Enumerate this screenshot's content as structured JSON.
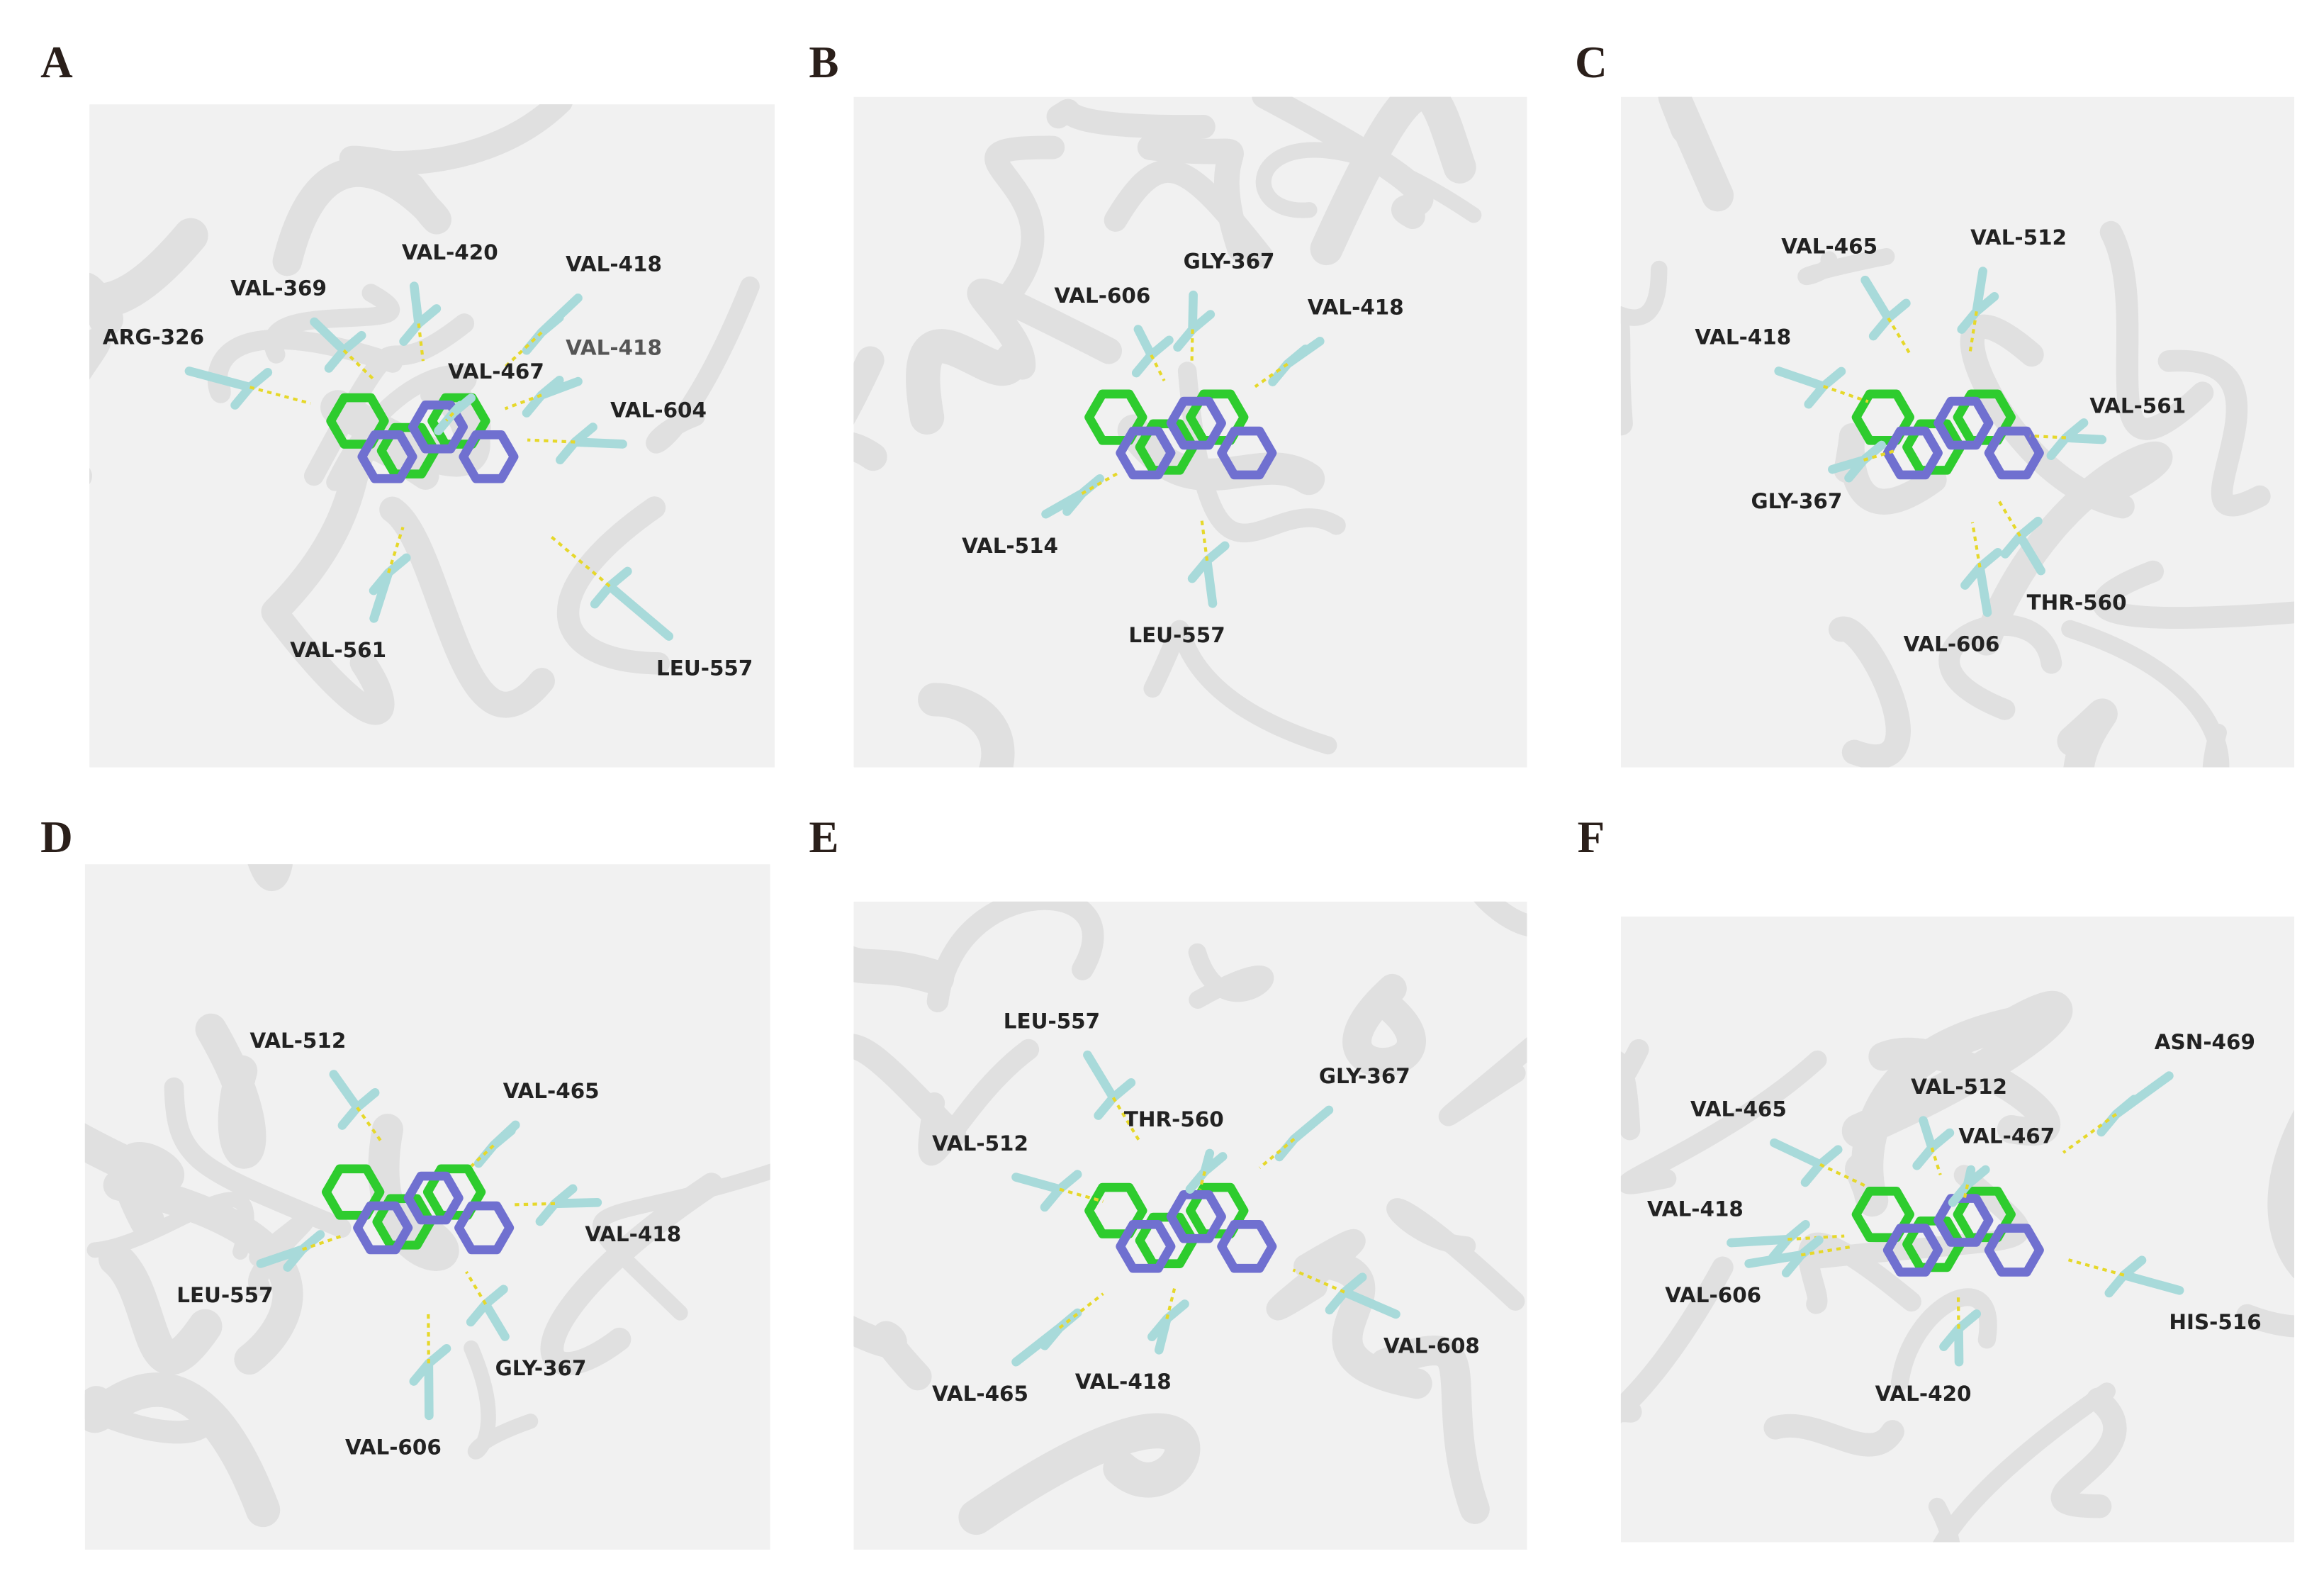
{
  "panels": [
    {
      "letter": "A",
      "labels": [
        "ARG-326",
        "VAL-369",
        "VAL-420",
        "VAL-418",
        "VAL-467",
        "VAL-418",
        "VAL-604",
        "VAL-561",
        "LEU-557"
      ]
    },
    {
      "letter": "B",
      "labels": [
        "GLY-367",
        "VAL-606",
        "VAL-418",
        "VAL-514",
        "LEU-557"
      ]
    },
    {
      "letter": "C",
      "labels": [
        "VAL-465",
        "VAL-512",
        "VAL-418",
        "VAL-561",
        "GLY-367",
        "THR-560",
        "VAL-606"
      ]
    },
    {
      "letter": "D",
      "labels": [
        "VAL-512",
        "VAL-465",
        "VAL-418",
        "LEU-557",
        "GLY-367",
        "VAL-606"
      ]
    },
    {
      "letter": "E",
      "labels": [
        "LEU-557",
        "GLY-367",
        "THR-560",
        "VAL-512",
        "VAL-608",
        "VAL-465",
        "VAL-418"
      ]
    },
    {
      "letter": "F",
      "labels": [
        "ASN-469",
        "VAL-512",
        "VAL-465",
        "VAL-467",
        "VAL-418",
        "VAL-606",
        "HIS-516",
        "VAL-420"
      ]
    }
  ]
}
